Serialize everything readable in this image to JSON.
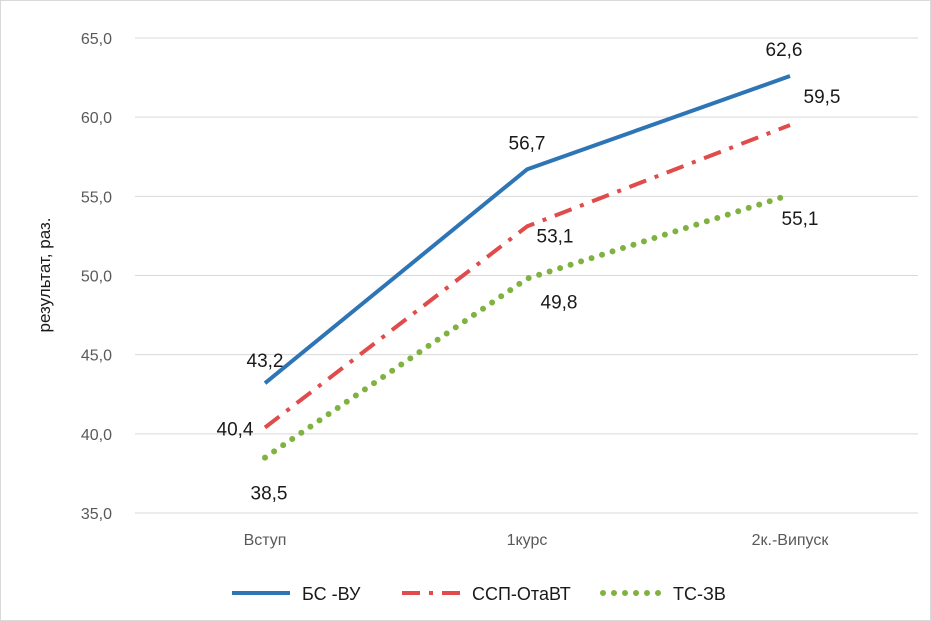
{
  "chart_data": {
    "type": "line",
    "ylabel": "результат,  раз.",
    "ylim": [
      35,
      65
    ],
    "yticks": [
      "65,0",
      "60,0",
      "55,0",
      "50,0",
      "45,0",
      "40,0",
      "35,0"
    ],
    "categories": [
      "Вступ",
      "1курс",
      "2к.-Випуск"
    ],
    "grid": true,
    "legend": "bottom",
    "series": [
      {
        "name": "БС -ВУ",
        "values": [
          43.2,
          56.7,
          62.6
        ],
        "labels": [
          "43,2",
          "56,7",
          "62,6"
        ],
        "color": "#2e75b6",
        "style": "solid"
      },
      {
        "name": "ССП-ОтаВТ",
        "values": [
          40.4,
          53.1,
          59.5
        ],
        "labels": [
          "40,4",
          "53,1",
          "59,5"
        ],
        "color": "#e04b4b",
        "style": "dashdot"
      },
      {
        "name": "ТС-ЗВ",
        "values": [
          38.5,
          49.8,
          55.1
        ],
        "labels": [
          "38,5",
          "49,8",
          "55,1"
        ],
        "color": "#7fb241",
        "style": "dotted"
      }
    ]
  }
}
